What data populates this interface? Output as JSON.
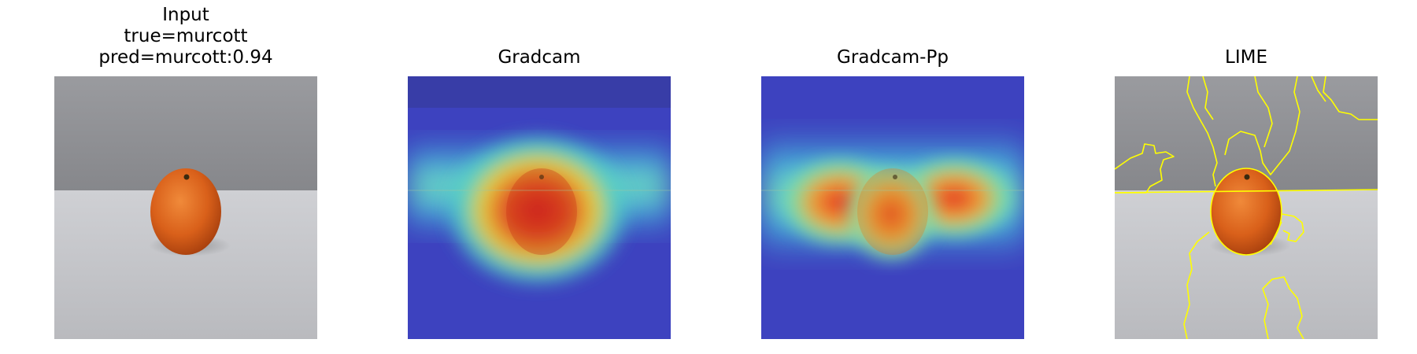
{
  "panels": [
    {
      "id": "input",
      "title_lines": [
        "Input",
        "true=murcott",
        "pred=murcott:0.94"
      ]
    },
    {
      "id": "gradcam",
      "title_lines": [
        "Gradcam"
      ]
    },
    {
      "id": "gradcampp",
      "title_lines": [
        "Gradcam-Pp"
      ]
    },
    {
      "id": "lime",
      "title_lines": [
        "LIME"
      ]
    }
  ],
  "colors": {
    "background_wall": "#8e8f93",
    "table": "#c6c7cc",
    "fruit": "#e0651c",
    "heat_low": "#3b3fc0",
    "heat_high": "#e01818",
    "lime_boundary": "#ffff00"
  }
}
